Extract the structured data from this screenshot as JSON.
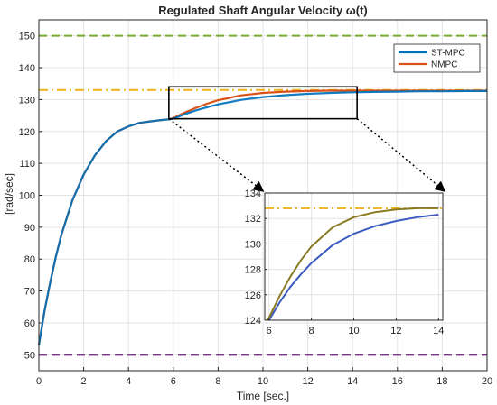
{
  "chart_data": {
    "type": "line",
    "title": "Regulated Shaft Angular Velocity ω(t)",
    "xlabel": "Time [sec.]",
    "ylabel": "[rad/sec]",
    "xlim": [
      0,
      20
    ],
    "ylim": [
      45,
      155
    ],
    "xticks": [
      0,
      2,
      4,
      6,
      8,
      10,
      12,
      14,
      16,
      18,
      20
    ],
    "yticks": [
      50,
      60,
      70,
      80,
      90,
      100,
      110,
      120,
      130,
      140,
      150
    ],
    "grid": true,
    "legend_position": "top-right",
    "series": [
      {
        "name": "ST-MPC",
        "color": "#0072BD",
        "x": [
          0,
          0.25,
          0.5,
          0.75,
          1,
          1.5,
          2,
          2.5,
          3,
          3.5,
          4,
          4.5,
          5,
          5.5,
          5.8,
          6,
          6.5,
          7,
          7.5,
          8,
          9,
          10,
          11,
          12,
          13,
          14,
          15,
          16,
          17,
          18,
          19,
          20
        ],
        "y": [
          53,
          63.6,
          72.5,
          80.5,
          87.5,
          98.5,
          106.5,
          112.5,
          117,
          120,
          121.6,
          122.7,
          123.2,
          123.6,
          123.8,
          124,
          125.4,
          126.6,
          127.6,
          128.5,
          129.9,
          130.8,
          131.4,
          131.8,
          132.1,
          132.3,
          132.4,
          132.5,
          132.6,
          132.6,
          132.7,
          132.7
        ]
      },
      {
        "name": "NMPC",
        "color": "#D95319",
        "x": [
          0,
          0.25,
          0.5,
          0.75,
          1,
          1.5,
          2,
          2.5,
          3,
          3.5,
          4,
          4.5,
          5,
          5.5,
          5.8,
          6,
          6.5,
          7,
          7.5,
          8,
          9,
          10,
          11,
          12,
          13,
          14,
          15,
          16,
          17,
          18,
          19,
          20
        ],
        "y": [
          53,
          63.6,
          72.5,
          80.5,
          87.5,
          98.5,
          106.5,
          112.5,
          117,
          120,
          121.6,
          122.7,
          123.2,
          123.6,
          123.8,
          124.2,
          125.9,
          127.4,
          128.7,
          129.8,
          131.3,
          132.1,
          132.5,
          132.7,
          132.8,
          132.8,
          132.8,
          132.8,
          132.8,
          132.8,
          132.8,
          132.8
        ]
      }
    ],
    "reference_lines": [
      {
        "y": 150,
        "color": "#77AC30",
        "style": "dashed"
      },
      {
        "y": 133,
        "color": "#EDB120",
        "style": "dashdot"
      },
      {
        "y": 50,
        "color": "#7E2F8E",
        "style": "dashed"
      }
    ],
    "inset": {
      "xlim": [
        5.8,
        14.2
      ],
      "ylim": [
        124,
        134
      ],
      "xticks": [
        6,
        8,
        10,
        12,
        14
      ],
      "yticks": [
        124,
        126,
        128,
        130,
        132,
        134
      ],
      "series_colors": [
        "#3B5BC2",
        "#8A7A24"
      ],
      "reference_line": {
        "y": 132.8,
        "color": "#EDB120",
        "style": "dashdot"
      }
    }
  }
}
